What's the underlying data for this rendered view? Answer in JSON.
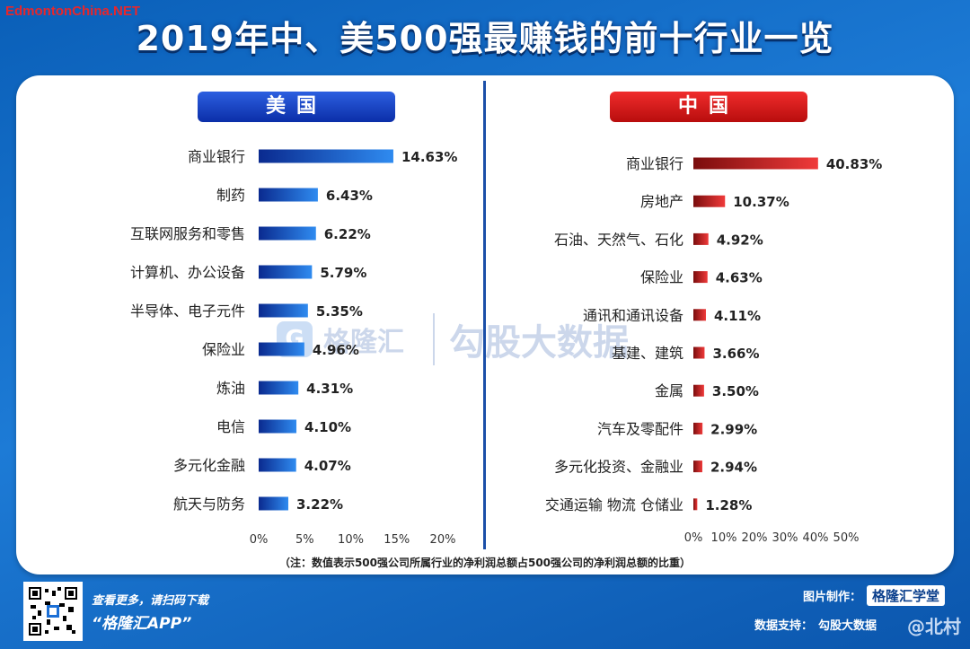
{
  "site_tag": "EdmontonChina.NET",
  "title": "2019年中、美500强最赚钱的前十行业一览",
  "countries": {
    "us": "美国",
    "cn": "中国"
  },
  "footnote": "（注：数值表示500强公司所属行业的净利润总额占500强公司的净利润总额的比重）",
  "watermark": {
    "logo": "G",
    "name": "格隆汇",
    "sub": "勾股大数据"
  },
  "footer": {
    "scan_text": "查看更多，请扫码下载",
    "app_name": "“格隆汇APP”",
    "made_by_label": "图片制作：",
    "made_by_brand": "格隆汇学堂",
    "data_label": "数据支持：",
    "data_source": "勾股大数据",
    "weibo": "@北村"
  },
  "colors": {
    "us_bar": "#1f5fd6",
    "cn_bar": "#e0262b"
  },
  "chart_data": [
    {
      "type": "bar",
      "orientation": "horizontal",
      "title": "美国",
      "categories": [
        "商业银行",
        "制药",
        "互联网服务和零售",
        "计算机、办公设备",
        "半导体、电子元件",
        "保险业",
        "炼油",
        "电信",
        "多元化金融",
        "航天与防务"
      ],
      "values": [
        14.63,
        6.43,
        6.22,
        5.79,
        5.35,
        4.96,
        4.31,
        4.1,
        4.07,
        3.22
      ],
      "value_labels": [
        "14.63%",
        "6.43%",
        "6.22%",
        "5.79%",
        "5.35%",
        "4.96%",
        "4.31%",
        "4.10%",
        "4.07%",
        "3.22%"
      ],
      "xlim": [
        0,
        20
      ],
      "xticks": [
        "0%",
        "5%",
        "10%",
        "15%",
        "20%"
      ],
      "grid": false
    },
    {
      "type": "bar",
      "orientation": "horizontal",
      "title": "中国",
      "categories": [
        "商业银行",
        "房地产",
        "石油、天然气、石化",
        "保险业",
        "通讯和通讯设备",
        "基建、建筑",
        "金属",
        "汽车及零配件",
        "多元化投资、金融业",
        "交通运输 物流 仓储业"
      ],
      "values": [
        40.83,
        10.37,
        4.92,
        4.63,
        4.11,
        3.66,
        3.5,
        2.99,
        2.94,
        1.28
      ],
      "value_labels": [
        "40.83%",
        "10.37%",
        "4.92%",
        "4.63%",
        "4.11%",
        "3.66%",
        "3.50%",
        "2.99%",
        "2.94%",
        "1.28%"
      ],
      "xlim": [
        0,
        50
      ],
      "xticks": [
        "0%",
        "10%",
        "20%",
        "30%",
        "40%",
        "50%"
      ],
      "grid": false
    }
  ]
}
